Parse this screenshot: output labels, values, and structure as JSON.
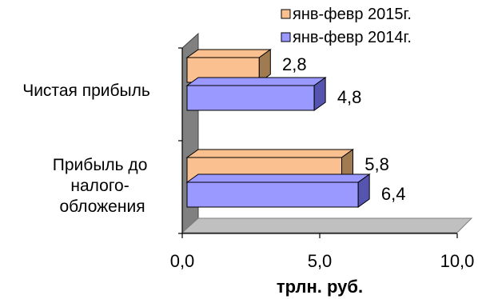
{
  "chart_data": {
    "type": "bar",
    "orientation": "horizontal",
    "three_d": true,
    "categories": [
      [
        "Чистая прибыль"
      ],
      [
        "Прибыль до",
        "налого-",
        "обложения"
      ]
    ],
    "series": [
      {
        "name": "янв-февр 2015г.",
        "values": [
          2.8,
          5.8
        ],
        "labels": [
          "2,8",
          "5,8"
        ],
        "color": "#FAC090"
      },
      {
        "name": "янв-февр 2014г.",
        "values": [
          4.8,
          6.4
        ],
        "labels": [
          "4,8",
          "6,4"
        ],
        "color": "#9999FF"
      }
    ],
    "xlim": [
      0,
      10
    ],
    "xticks": [
      0,
      5,
      10
    ],
    "xtick_labels": [
      "0,0",
      "5,0",
      "10,0"
    ],
    "xlabel": "трлн. руб.",
    "legend_position": "top-right",
    "grid": false,
    "colors": {
      "wall": "#808080",
      "floor": "#C0C0C0",
      "outline": "#000000"
    }
  }
}
